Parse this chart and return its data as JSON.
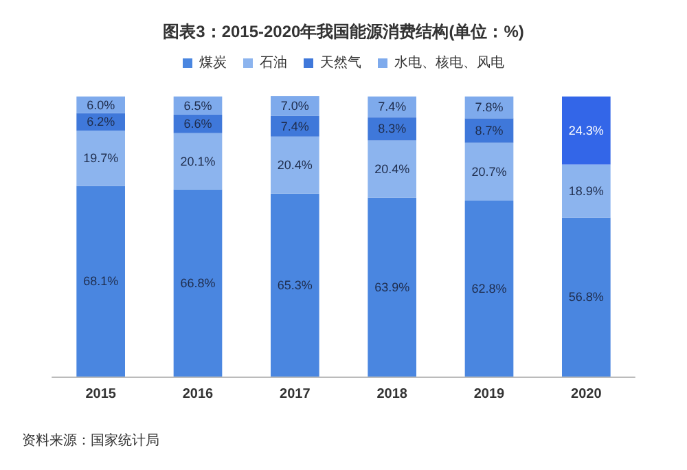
{
  "chart_data": {
    "type": "bar",
    "stacked": true,
    "title": "图表3：2015-2020年我国能源消费结构(单位：%)",
    "categories": [
      "2015",
      "2016",
      "2017",
      "2018",
      "2019",
      "2020"
    ],
    "legend": "top",
    "tick_labels": "x",
    "annotations": [
      "资料来源：国家统计局"
    ],
    "series": [
      {
        "name": "煤炭",
        "color": "#4a86e0",
        "values": [
          68.1,
          66.8,
          65.3,
          63.9,
          62.8,
          56.8
        ],
        "value_labels": [
          "68.1%",
          "66.8%",
          "65.3%",
          "63.9%",
          "62.8%",
          "56.8%"
        ]
      },
      {
        "name": "石油",
        "color": "#8cb4ee",
        "values": [
          19.7,
          20.1,
          20.4,
          20.4,
          20.7,
          18.9
        ],
        "value_labels": [
          "19.7%",
          "20.1%",
          "20.4%",
          "20.4%",
          "20.7%",
          "18.9%"
        ]
      },
      {
        "name": "天然气",
        "color": "#3f78da",
        "colors": [
          "#3f78da",
          "#3f78da",
          "#3f78da",
          "#3f78da",
          "#3f78da",
          "#3366e8"
        ],
        "values": [
          6.2,
          6.6,
          7.4,
          8.3,
          8.7,
          24.3
        ],
        "value_labels": [
          "6.2%",
          "6.6%",
          "7.4%",
          "8.3%",
          "8.7%",
          "24.3%"
        ]
      },
      {
        "name": "水电、核电、风电",
        "color": "#7eaaec",
        "values": [
          6.0,
          6.5,
          7.0,
          7.4,
          7.8,
          null
        ],
        "value_labels": [
          "6.0%",
          "6.5%",
          "7.0%",
          "7.4%",
          "7.8%",
          null
        ]
      }
    ]
  }
}
